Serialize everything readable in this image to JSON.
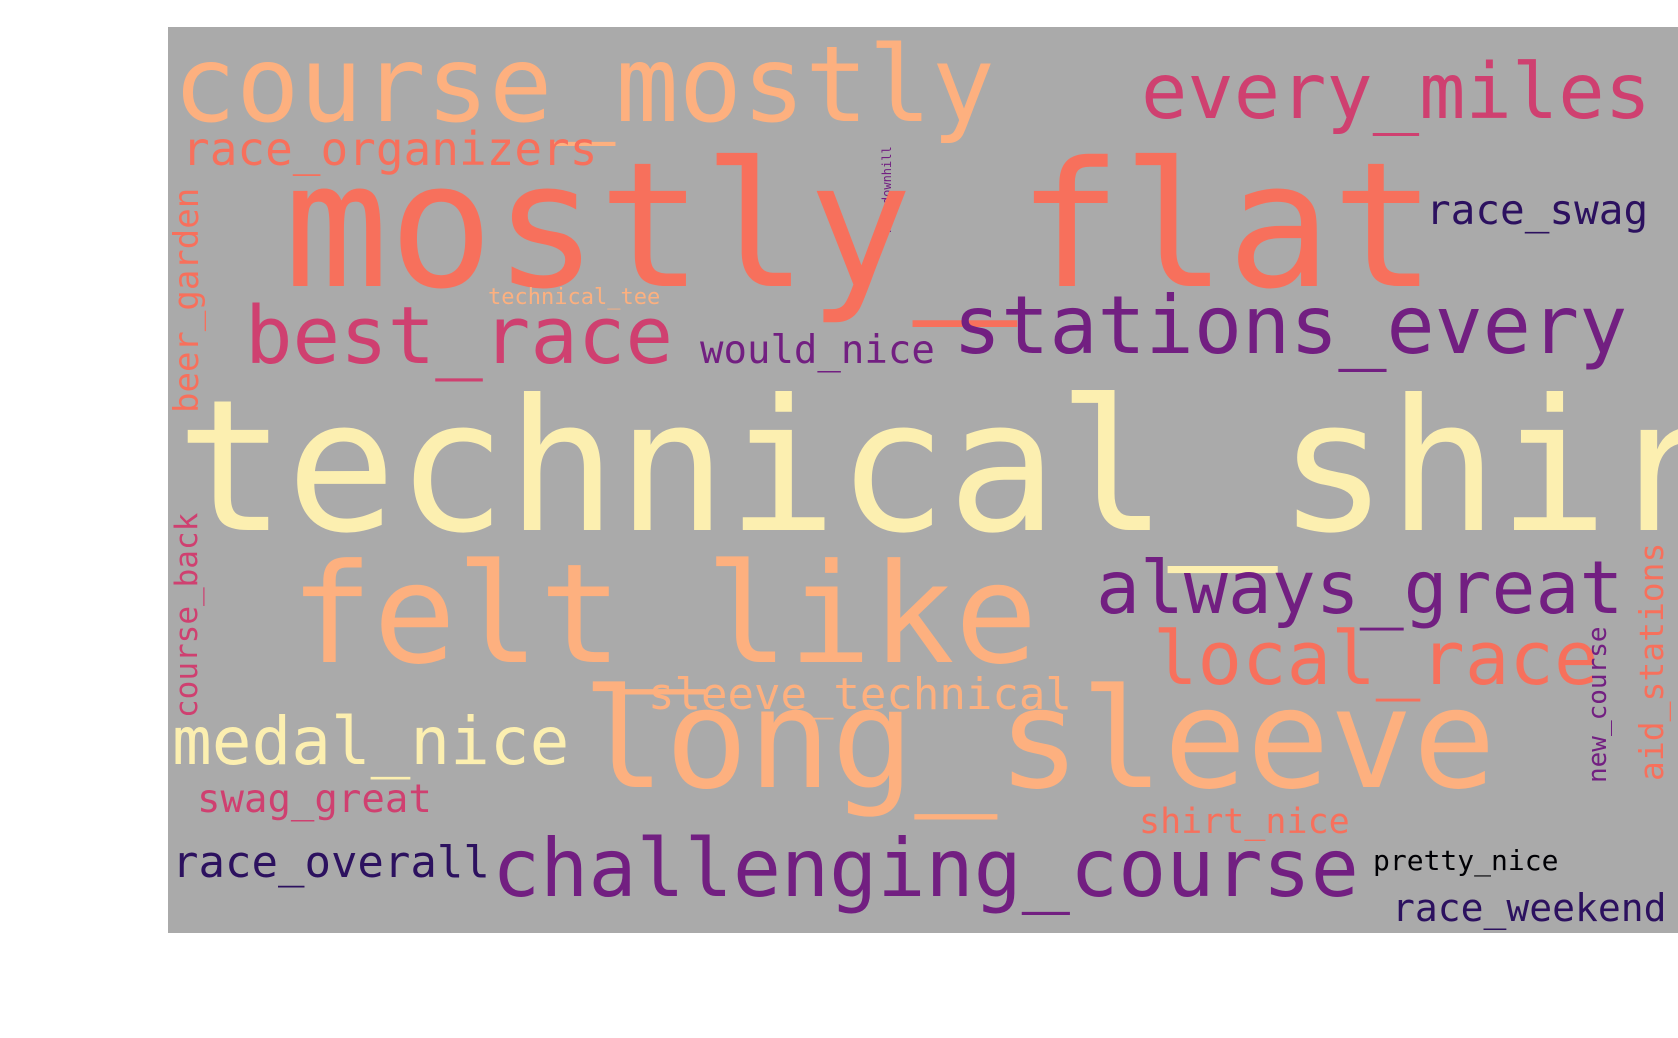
{
  "words": {
    "course_mostly": {
      "text": "course_mostly",
      "color": "#fdb07f"
    },
    "every_miles": {
      "text": "every_miles",
      "color": "#cf4070"
    },
    "race_organizers": {
      "text": "race_organizers",
      "color": "#f7705c"
    },
    "net_downhill": {
      "text": "net_downhill",
      "color": "#721f81"
    },
    "mostly_flat": {
      "text": "mostly_flat",
      "color": "#f7705c"
    },
    "race_swag": {
      "text": "race_swag",
      "color": "#2c115f"
    },
    "beer_garden": {
      "text": "beer_garden",
      "color": "#f7705c"
    },
    "technical_tee": {
      "text": "technical_tee",
      "color": "#fdb07f"
    },
    "best_race": {
      "text": "best_race",
      "color": "#cf4070"
    },
    "would_nice": {
      "text": "would_nice",
      "color": "#721f81"
    },
    "stations_every": {
      "text": "stations_every",
      "color": "#721f81"
    },
    "technical_shirt": {
      "text": "technical_shirt",
      "color": "#fcefb0"
    },
    "course_back": {
      "text": "course_back",
      "color": "#cf4070"
    },
    "felt_like": {
      "text": "felt_like",
      "color": "#fdb07f"
    },
    "always_great": {
      "text": "always_great",
      "color": "#721f81"
    },
    "aid_stations": {
      "text": "aid_stations",
      "color": "#f7705c"
    },
    "local_race": {
      "text": "local_race",
      "color": "#f7705c"
    },
    "new_course": {
      "text": "new_course",
      "color": "#721f81"
    },
    "sleeve_technical": {
      "text": "sleeve_technical",
      "color": "#fdb07f"
    },
    "medal_nice": {
      "text": "medal_nice",
      "color": "#fcefb0"
    },
    "long_sleeve": {
      "text": "long_sleeve",
      "color": "#fdb07f"
    },
    "swag_great": {
      "text": "swag_great",
      "color": "#cf4070"
    },
    "shirt_nice": {
      "text": "shirt_nice",
      "color": "#f7705c"
    },
    "race_overall": {
      "text": "race_overall",
      "color": "#2c115f"
    },
    "challenging_course": {
      "text": "challenging_course",
      "color": "#721f81"
    },
    "pretty_nice": {
      "text": "pretty_nice",
      "color": "#000004"
    },
    "race_weekend": {
      "text": "race_weekend",
      "color": "#2c115f"
    }
  },
  "background_color": "#aaaaaa"
}
